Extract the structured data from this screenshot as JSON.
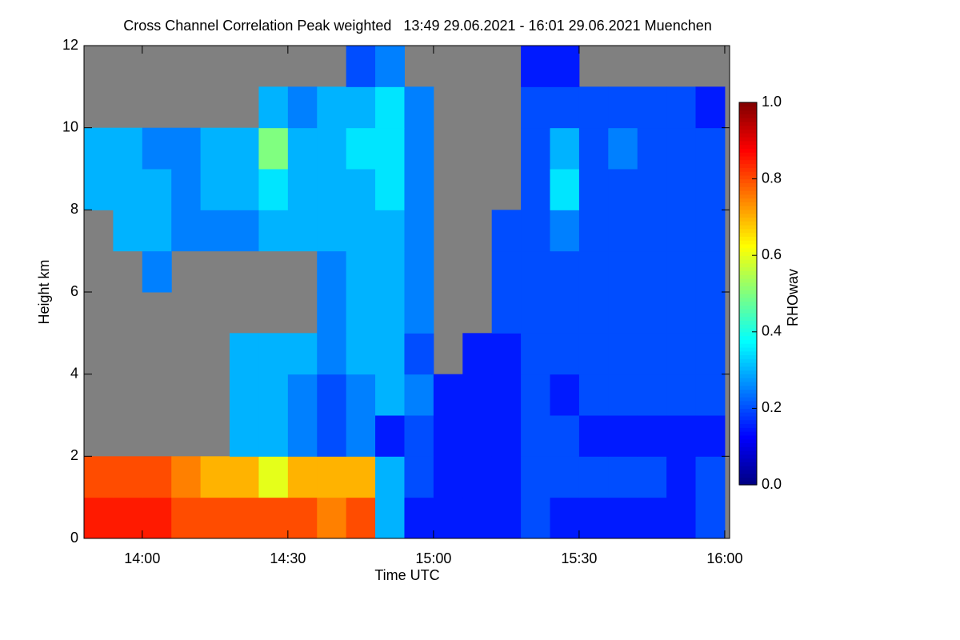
{
  "chart_data": {
    "type": "heatmap",
    "title": "Cross Channel Correlation Peak weighted   13:49 29.06.2021 - 16:01 29.06.2021 Muenchen",
    "x_label": "Time UTC",
    "y_label": "Height km",
    "colorbar_label": "RHOwav",
    "xlim": [
      828,
      961
    ],
    "xticks": [
      {
        "value": 840,
        "label": "14:00"
      },
      {
        "value": 870,
        "label": "14:30"
      },
      {
        "value": 900,
        "label": "15:00"
      },
      {
        "value": 930,
        "label": "15:30"
      },
      {
        "value": 960,
        "label": "16:00"
      }
    ],
    "ylim": [
      0,
      12
    ],
    "yticks": [
      0,
      2,
      4,
      6,
      8,
      10,
      12
    ],
    "zlim": [
      0,
      1
    ],
    "zticks": [
      {
        "value": 0,
        "label": "0.0"
      },
      {
        "value": 0.2,
        "label": "0.2"
      },
      {
        "value": 0.4,
        "label": "0.4"
      },
      {
        "value": 0.6,
        "label": "0.6"
      },
      {
        "value": 0.8,
        "label": "0.8"
      },
      {
        "value": 1,
        "label": "1.0"
      }
    ],
    "colormap": "jet",
    "x": [
      828,
      834,
      840,
      846,
      852,
      858,
      864,
      870,
      876,
      882,
      888,
      894,
      900,
      906,
      912,
      918,
      924,
      930,
      936,
      942,
      948,
      954,
      960
    ],
    "y": [
      0,
      1,
      2,
      3,
      4,
      5,
      6,
      7,
      8,
      9,
      10,
      11,
      12
    ],
    "z": [
      [
        0.85,
        0.85,
        0.85,
        0.8,
        0.8,
        0.8,
        0.8,
        0.8,
        0.75,
        0.8,
        0.3,
        0.15,
        0.15,
        0.15,
        0.15,
        0.2,
        0.15,
        0.15,
        0.15,
        0.15,
        0.15,
        0.2
      ],
      [
        0.8,
        0.8,
        0.8,
        0.75,
        0.7,
        0.7,
        0.6,
        0.7,
        0.7,
        0.7,
        0.3,
        0.2,
        0.15,
        0.15,
        0.15,
        0.2,
        0.2,
        0.2,
        0.2,
        0.2,
        0.15,
        0.2
      ],
      [
        null,
        null,
        null,
        null,
        null,
        0.3,
        0.3,
        0.25,
        0.2,
        0.25,
        0.15,
        0.2,
        0.15,
        0.15,
        0.15,
        0.2,
        0.2,
        0.15,
        0.15,
        0.15,
        0.15,
        0.15
      ],
      [
        null,
        null,
        null,
        null,
        null,
        0.3,
        0.3,
        0.25,
        0.2,
        0.25,
        0.3,
        0.25,
        0.15,
        0.15,
        0.15,
        0.2,
        0.15,
        0.2,
        0.2,
        0.2,
        0.2,
        0.2
      ],
      [
        null,
        null,
        null,
        null,
        null,
        0.3,
        0.3,
        0.3,
        0.25,
        0.3,
        0.3,
        0.2,
        null,
        0.15,
        0.15,
        0.2,
        0.2,
        0.2,
        0.2,
        0.2,
        0.2,
        0.2
      ],
      [
        null,
        null,
        null,
        null,
        null,
        null,
        null,
        null,
        0.25,
        0.3,
        0.3,
        0.25,
        null,
        null,
        0.2,
        0.2,
        0.2,
        0.2,
        0.2,
        0.2,
        0.2,
        0.2
      ],
      [
        null,
        null,
        0.25,
        null,
        null,
        null,
        null,
        null,
        0.25,
        0.3,
        0.3,
        0.25,
        null,
        null,
        0.2,
        0.2,
        0.2,
        0.2,
        0.2,
        0.2,
        0.2,
        0.2
      ],
      [
        null,
        0.3,
        0.3,
        0.25,
        0.25,
        0.25,
        0.3,
        0.3,
        0.3,
        0.3,
        0.3,
        0.25,
        null,
        null,
        0.2,
        0.2,
        0.25,
        0.2,
        0.2,
        0.2,
        0.2,
        0.2
      ],
      [
        0.3,
        0.3,
        0.3,
        0.25,
        0.3,
        0.3,
        0.35,
        0.3,
        0.3,
        0.3,
        0.35,
        0.25,
        null,
        null,
        null,
        0.2,
        0.35,
        0.2,
        0.2,
        0.2,
        0.2,
        0.2
      ],
      [
        0.3,
        0.3,
        0.25,
        0.25,
        0.3,
        0.3,
        0.5,
        0.3,
        0.3,
        0.35,
        0.35,
        0.25,
        null,
        null,
        null,
        0.2,
        0.3,
        0.2,
        0.25,
        0.2,
        0.2,
        0.2
      ],
      [
        null,
        null,
        null,
        null,
        null,
        null,
        0.3,
        0.25,
        0.3,
        0.3,
        0.35,
        0.25,
        null,
        null,
        null,
        0.2,
        0.2,
        0.2,
        0.2,
        0.2,
        0.2,
        0.15
      ],
      [
        null,
        null,
        null,
        null,
        null,
        null,
        null,
        null,
        null,
        0.2,
        0.25,
        null,
        null,
        null,
        null,
        0.15,
        0.15,
        null,
        null,
        null,
        null,
        null
      ]
    ]
  }
}
